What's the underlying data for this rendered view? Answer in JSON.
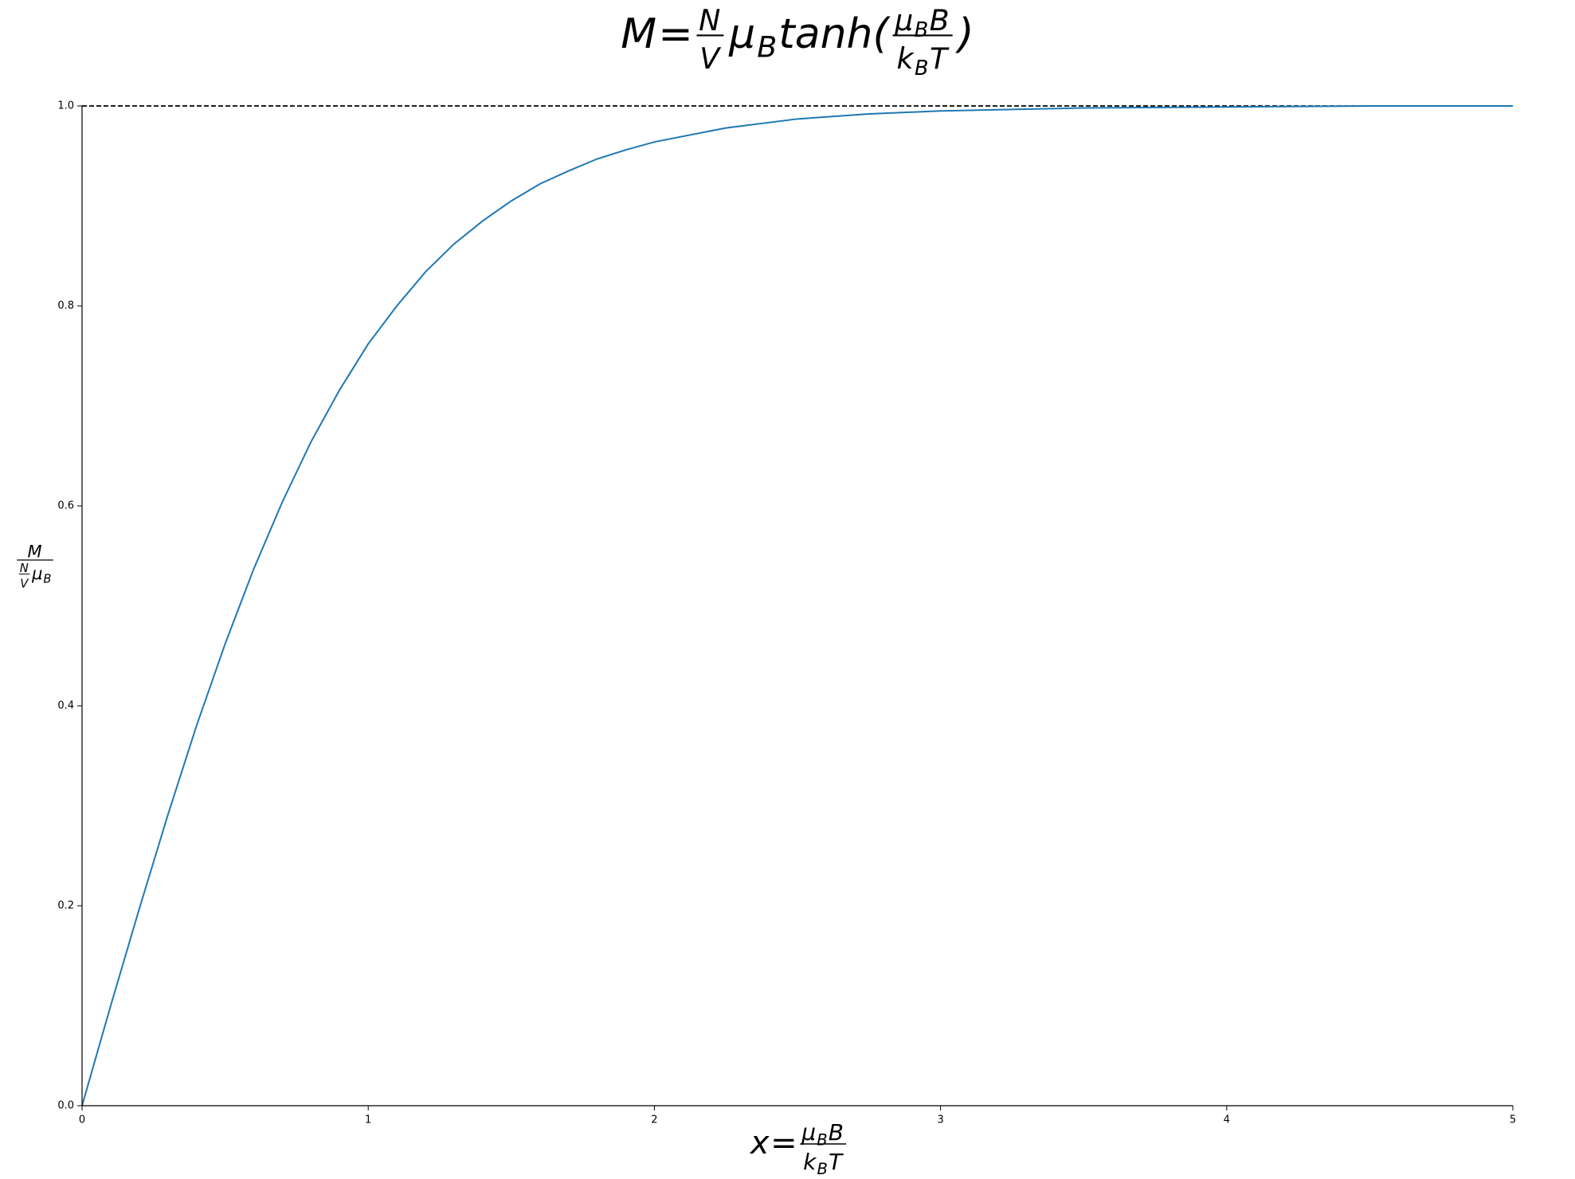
{
  "chart_data": {
    "type": "line",
    "title": [
      "M",
      "=",
      {
        "num": [
          "N"
        ],
        "den": [
          "V"
        ]
      },
      "μ",
      {
        "sub": "B"
      },
      "tanh(",
      {
        "num": [
          "μ",
          {
            "sub": "B"
          },
          "B"
        ],
        "den": [
          "k",
          {
            "sub": "B"
          },
          "T"
        ]
      },
      ")"
    ],
    "x_label": [
      "x",
      "=",
      {
        "num": [
          "μ",
          {
            "sub": "B"
          },
          "B"
        ],
        "den": [
          "k",
          {
            "sub": "B"
          },
          "T"
        ]
      }
    ],
    "y_label": [
      {
        "num": [
          "M"
        ],
        "den": [
          {
            "num": [
              "N"
            ],
            "den": [
              "V"
            ]
          },
          "μ",
          {
            "sub": "B"
          }
        ]
      }
    ],
    "x": [
      0,
      0.1,
      0.2,
      0.3,
      0.4,
      0.5,
      0.6,
      0.7,
      0.8,
      0.9,
      1.0,
      1.1,
      1.2,
      1.3,
      1.4,
      1.5,
      1.6,
      1.7,
      1.8,
      1.9,
      2.0,
      2.25,
      2.5,
      2.75,
      3.0,
      3.5,
      4.0,
      4.5,
      5.0
    ],
    "series": [
      {
        "color": "#1f77b4",
        "values": [
          0,
          0.1,
          0.197,
          0.291,
          0.38,
          0.462,
          0.537,
          0.604,
          0.664,
          0.716,
          0.762,
          0.8,
          0.834,
          0.862,
          0.885,
          0.905,
          0.922,
          0.935,
          0.947,
          0.956,
          0.964,
          0.978,
          0.987,
          0.992,
          0.995,
          0.998,
          0.999,
          1.0,
          1.0
        ]
      }
    ],
    "hlines": [
      {
        "value": 1.0,
        "color": "#000000",
        "style": "dashed"
      }
    ],
    "xlim": [
      0,
      5
    ],
    "ylim": [
      0,
      1
    ],
    "xticks": [
      0,
      1,
      2,
      3,
      4,
      5
    ],
    "yticks": [
      {
        "value": 0,
        "label": "0.0"
      },
      0.2,
      0.4,
      0.6,
      0.8,
      {
        "value": 1,
        "label": "1.0"
      }
    ],
    "grid": false
  }
}
